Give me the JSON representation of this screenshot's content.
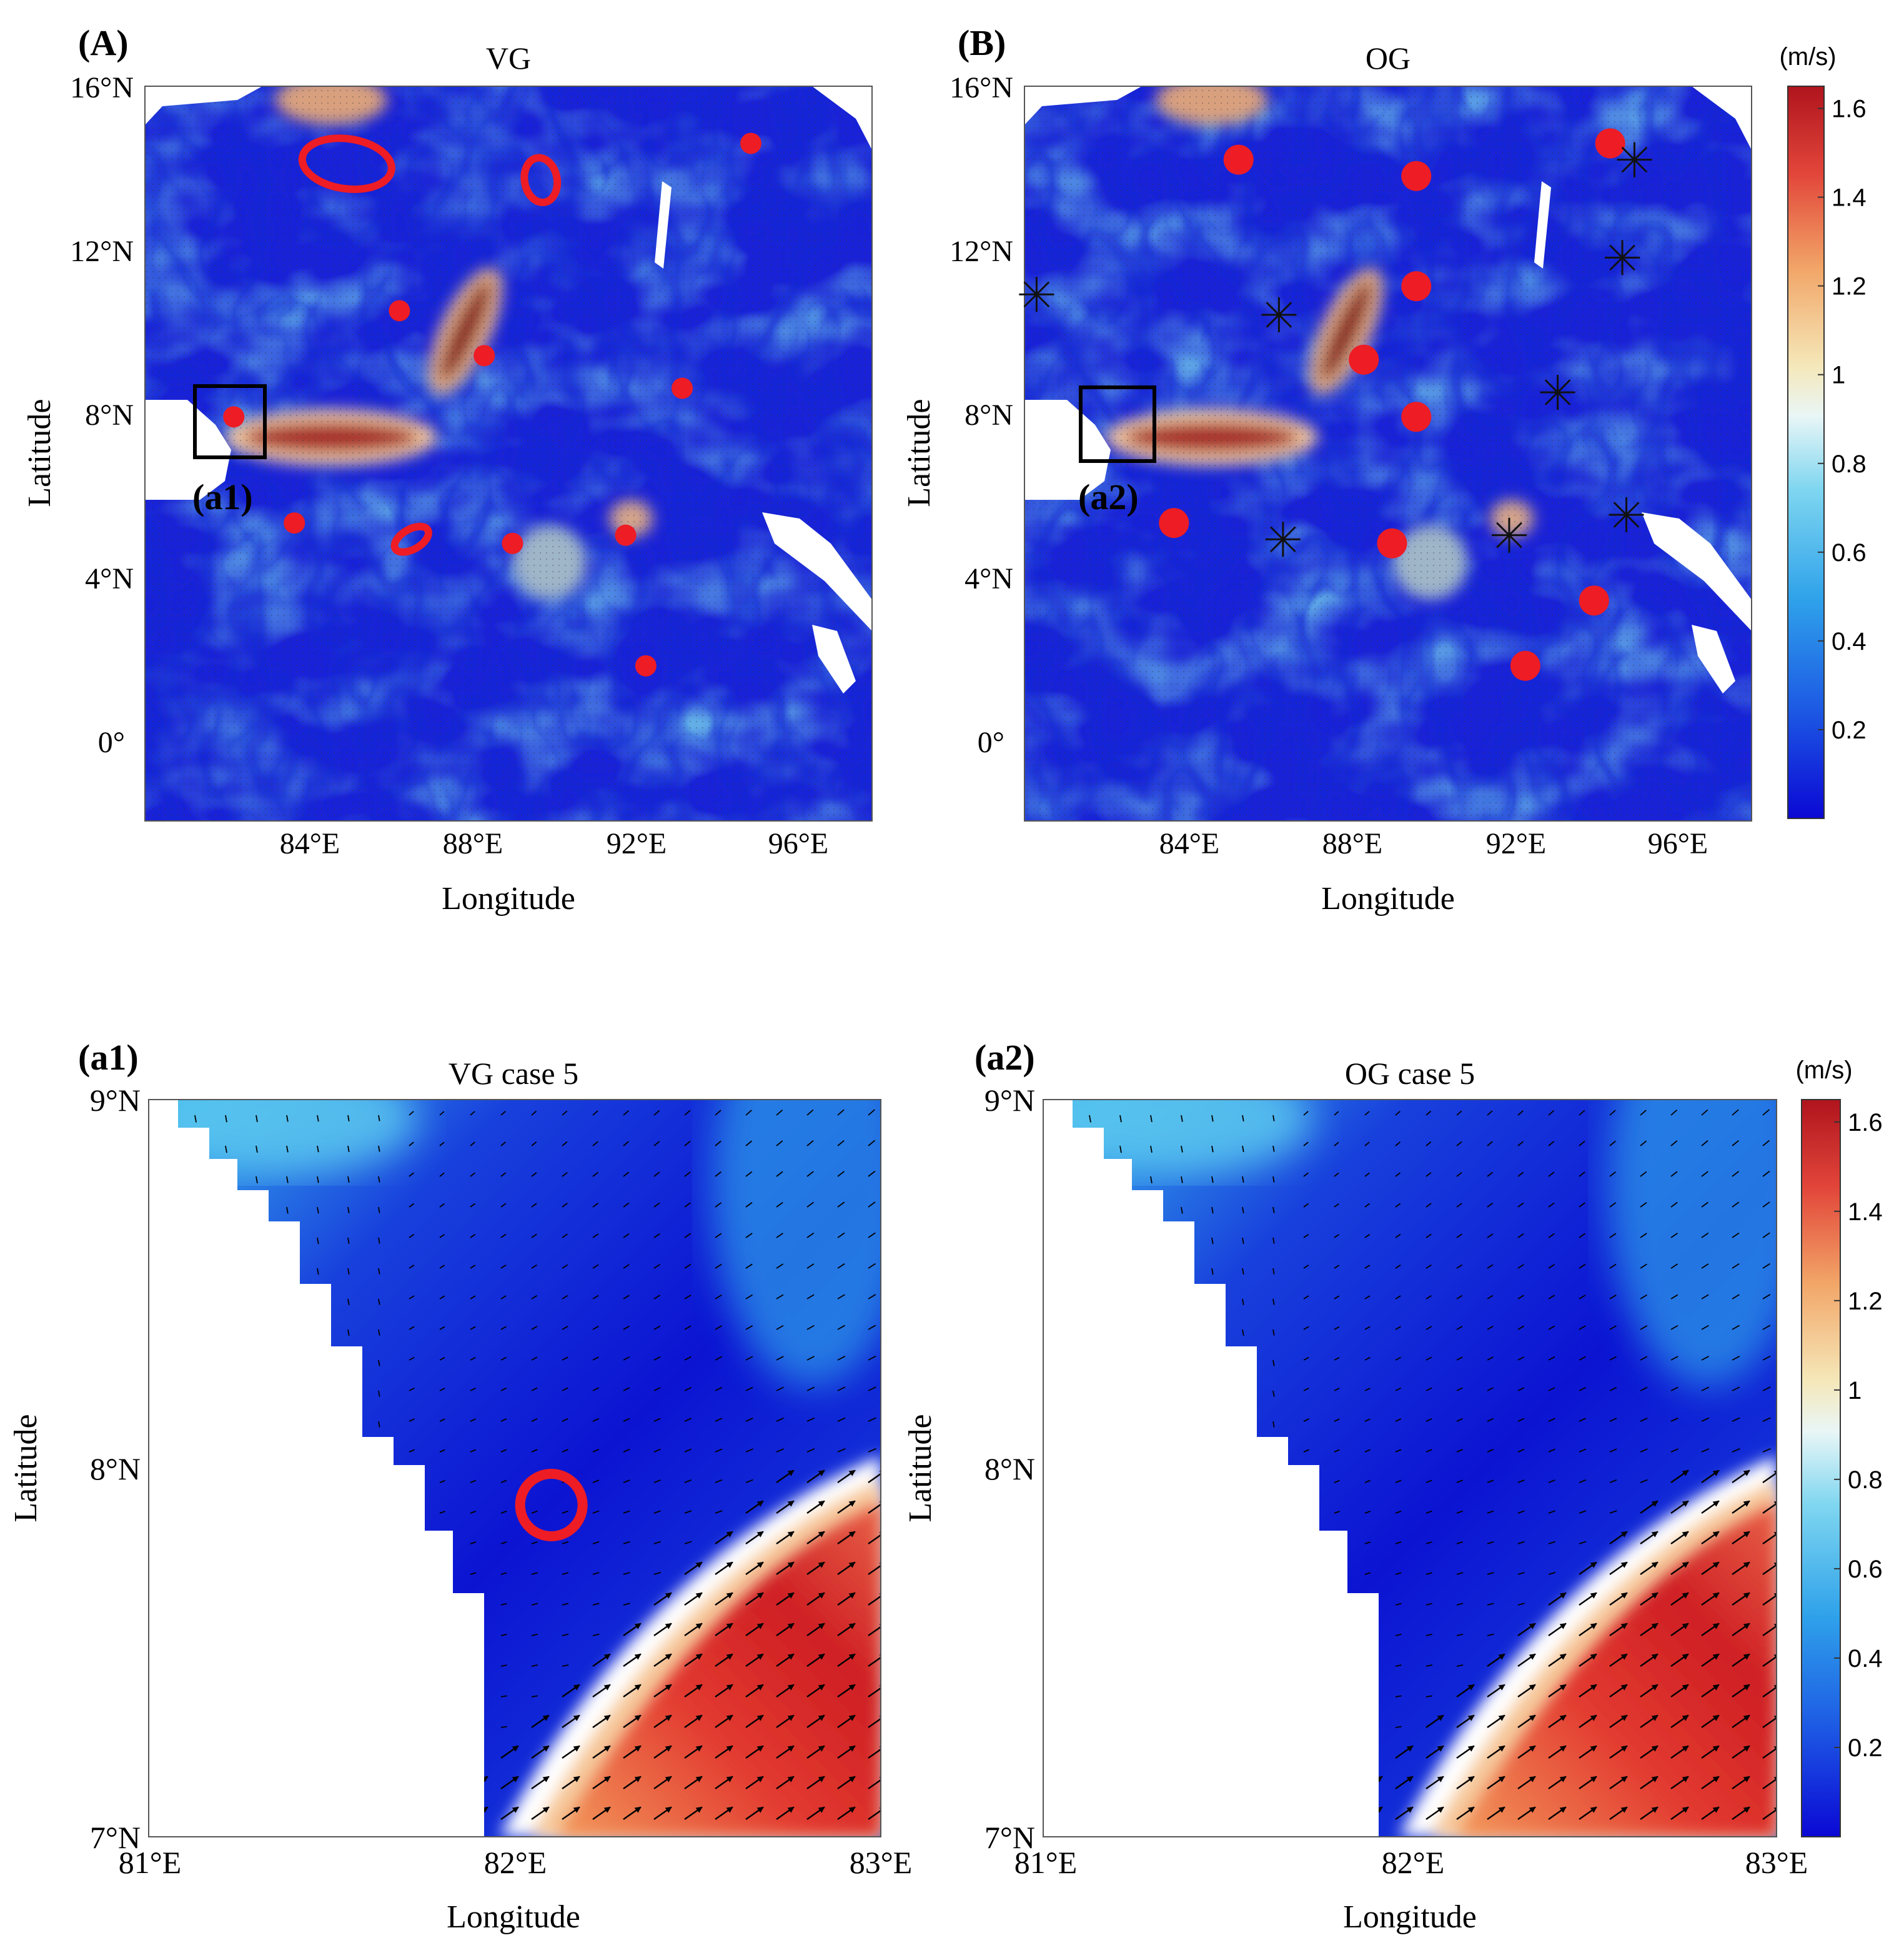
{
  "colorbar_unit": "(m/s)",
  "colorbar_ticks": [
    "0.2",
    "0.4",
    "0.6",
    "0.8",
    "1",
    "1.2",
    "1.4",
    "1.6"
  ],
  "colorbar_values": [
    0.2,
    0.4,
    0.6,
    0.8,
    1.0,
    1.2,
    1.4,
    1.6
  ],
  "colorbar_range": [
    0,
    1.65
  ],
  "colorbar_colors": [
    "#1010d8",
    "#1f6fe6",
    "#38b6e8",
    "#bfe6f2",
    "#f7efc8",
    "#f2a96a",
    "#e0453a",
    "#b5161f"
  ],
  "panels": {
    "A": {
      "tag": "(A)",
      "title": "VG",
      "xlabel": "Longitude",
      "ylabel": "Latitude",
      "xticks": [
        "84°E",
        "88°E",
        "92°E",
        "96°E"
      ],
      "yticks": [
        "16°N",
        "12°N",
        "8°N",
        "4°N",
        "0°"
      ],
      "box_label": "(a1)"
    },
    "B": {
      "tag": "(B)",
      "title": "OG",
      "xlabel": "Longitude",
      "ylabel": "Latitude",
      "xticks": [
        "84°E",
        "88°E",
        "92°E",
        "96°E"
      ],
      "yticks": [
        "16°N",
        "12°N",
        "8°N",
        "4°N",
        "0°"
      ],
      "box_label": "(a2)"
    },
    "a1": {
      "tag": "(a1)",
      "title": "VG case 5",
      "xlabel": "Longitude",
      "ylabel": "Latitude",
      "xticks": [
        "81°E",
        "82°E",
        "83°E"
      ],
      "yticks": [
        "9°N",
        "8°N",
        "7°N"
      ]
    },
    "a2": {
      "tag": "(a2)",
      "title": "OG case 5",
      "xlabel": "Longitude",
      "ylabel": "Latitude",
      "xticks": [
        "81°E",
        "82°E",
        "83°E"
      ],
      "yticks": [
        "9°N",
        "8°N",
        "7°N"
      ]
    }
  },
  "chart_data": [
    {
      "panel": "A",
      "type": "heatmap",
      "title": "VG",
      "xlabel": "Longitude",
      "ylabel": "Latitude",
      "xlim": [
        80,
        98
      ],
      "ylim": [
        -2,
        16
      ],
      "eddy_centers": [
        [
          82.2,
          7.9
        ],
        [
          83.7,
          5.3
        ],
        [
          86.3,
          10.5
        ],
        [
          88.4,
          9.4
        ],
        [
          89.1,
          4.8
        ],
        [
          91.9,
          5
        ],
        [
          93.3,
          8.6
        ],
        [
          95,
          14.6
        ],
        [
          92.4,
          1.8
        ]
      ],
      "eddy_boundaries": [
        [
          85,
          14.1
        ],
        [
          89.8,
          13.7
        ],
        [
          86.6,
          4.9
        ]
      ]
    },
    {
      "panel": "B",
      "type": "heatmap",
      "title": "OG",
      "xlabel": "Longitude",
      "ylabel": "Latitude",
      "xlim": [
        80,
        98
      ],
      "ylim": [
        -2,
        16
      ],
      "eddy_centers": [
        [
          83.7,
          5.3
        ],
        [
          85.3,
          14.2
        ],
        [
          89.7,
          13.8
        ],
        [
          89.7,
          11.1
        ],
        [
          88.4,
          9.3
        ],
        [
          89.7,
          7.9
        ],
        [
          89.1,
          4.8
        ],
        [
          94.5,
          14.6
        ],
        [
          94.1,
          3.4
        ],
        [
          92.4,
          1.8
        ]
      ],
      "star_markers": [
        [
          80.3,
          10.9
        ],
        [
          86.3,
          10.4
        ],
        [
          86.4,
          4.9
        ],
        [
          92,
          5
        ],
        [
          93.2,
          8.5
        ],
        [
          94.9,
          5.5
        ],
        [
          95.1,
          14.2
        ],
        [
          94.8,
          11.8
        ]
      ]
    },
    {
      "panel": "a1",
      "type": "heatmap",
      "title": "VG case 5",
      "xlabel": "Longitude",
      "ylabel": "Latitude",
      "xlim": [
        81,
        83
      ],
      "ylim": [
        7,
        9
      ],
      "eddy_center": [
        82.1,
        7.9
      ]
    },
    {
      "panel": "a2",
      "type": "heatmap",
      "title": "OG case 5",
      "xlabel": "Longitude",
      "ylabel": "Latitude",
      "xlim": [
        81,
        83
      ],
      "ylim": [
        7,
        9
      ]
    }
  ]
}
